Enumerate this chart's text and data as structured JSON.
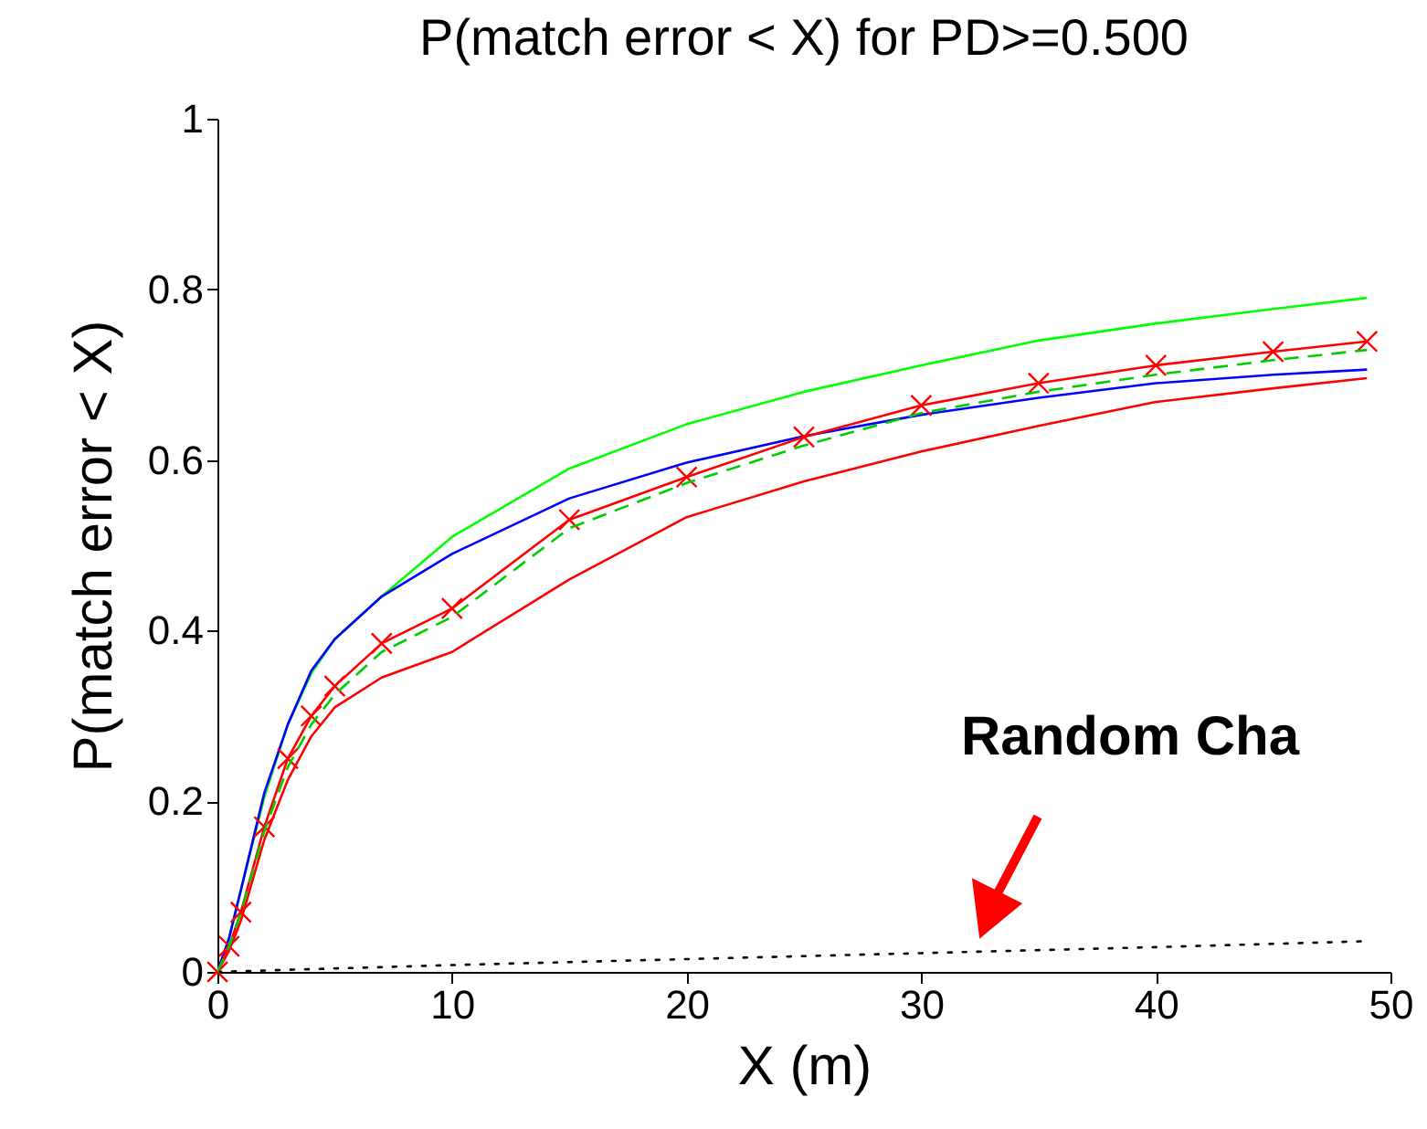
{
  "chart_data": {
    "type": "line",
    "title": "P(match error < X) for PD>=0.500",
    "xlabel": "X (m)",
    "ylabel": "P(match error < X)",
    "x": [
      0,
      0.5,
      1,
      2,
      3,
      4,
      5,
      7,
      10,
      15,
      20,
      25,
      30,
      35,
      40,
      45,
      49
    ],
    "series": [
      {
        "color": "#00ff00",
        "line_style": "solid",
        "values": [
          0,
          0.04,
          0.096,
          0.205,
          0.29,
          0.35,
          0.39,
          0.44,
          0.51,
          0.59,
          0.642,
          0.68,
          0.711,
          0.74,
          0.76,
          0.777,
          0.79
        ]
      },
      {
        "color": "#0000ff",
        "line_style": "solid",
        "values": [
          0,
          0.04,
          0.096,
          0.21,
          0.29,
          0.353,
          0.39,
          0.44,
          0.49,
          0.555,
          0.597,
          0.628,
          0.653,
          0.673,
          0.69,
          0.7,
          0.706
        ]
      },
      {
        "color": "#ff0000",
        "line_style": "solid",
        "values": [
          0,
          0.025,
          0.06,
          0.155,
          0.225,
          0.276,
          0.31,
          0.345,
          0.375,
          0.46,
          0.533,
          0.575,
          0.61,
          0.64,
          0.668,
          0.684,
          0.696
        ]
      },
      {
        "color": "#00cc00",
        "line_style": "dashed",
        "values": [
          0,
          0.03,
          0.07,
          0.165,
          0.24,
          0.29,
          0.325,
          0.375,
          0.416,
          0.52,
          0.573,
          0.617,
          0.655,
          0.68,
          0.7,
          0.717,
          0.729
        ]
      },
      {
        "color": "#ff0000",
        "line_style": "solid",
        "marker": "cross",
        "values": [
          0,
          0.03,
          0.07,
          0.17,
          0.25,
          0.3,
          0.335,
          0.385,
          0.426,
          0.53,
          0.58,
          0.627,
          0.664,
          0.69,
          0.711,
          0.727,
          0.739
        ]
      },
      {
        "color": "#000000",
        "line_style": "dotted",
        "x": [
          0,
          10,
          20,
          30,
          40,
          49
        ],
        "values": [
          0,
          0.008,
          0.015,
          0.022,
          0.029,
          0.036
        ]
      }
    ],
    "xlim": [
      0,
      50
    ],
    "ylim": [
      0,
      1
    ],
    "xticks": [
      0,
      10,
      20,
      30,
      40,
      50
    ],
    "yticks": [
      0,
      0.2,
      0.4,
      0.6,
      0.8,
      1
    ],
    "annotations": [
      "Random Cha"
    ]
  }
}
